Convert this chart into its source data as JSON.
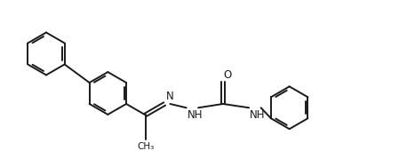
{
  "bg_color": "#ffffff",
  "line_color": "#1a1a1a",
  "line_width": 1.4,
  "font_size": 8.5,
  "figsize": [
    4.58,
    1.88
  ],
  "dpi": 100,
  "xlim": [
    0,
    9.5
  ],
  "ylim": [
    0,
    3.9
  ]
}
